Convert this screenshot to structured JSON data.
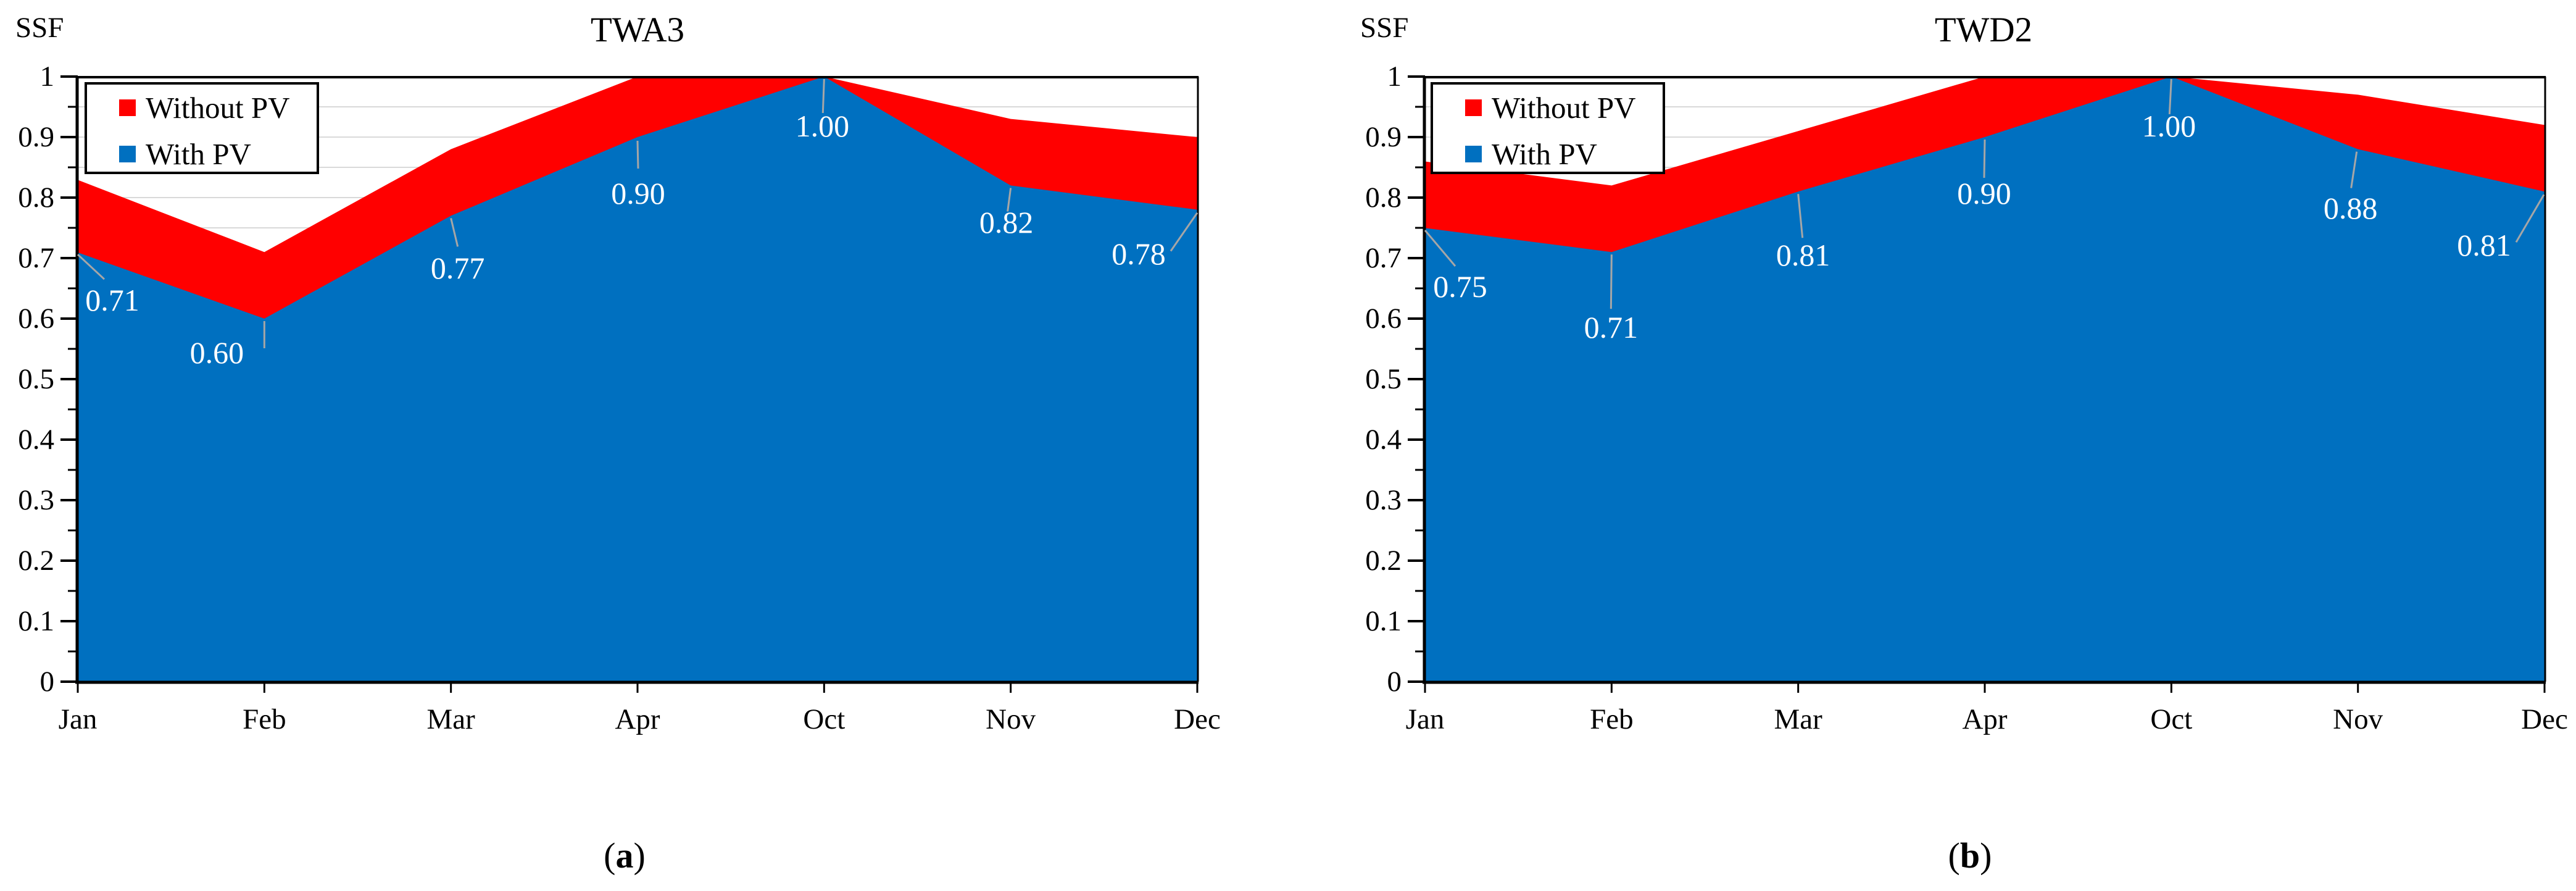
{
  "colors": {
    "without_pv": "#FF0000",
    "with_pv": "#0070C0",
    "gridline": "#D9D9D9",
    "leader_line": "#A6A6A6",
    "axis": "#000000",
    "data_label_text": "#FFFFFF",
    "background": "#FFFFFF"
  },
  "y_axis": {
    "label": "SSF",
    "tick_labels": [
      "1",
      "0.9",
      "0.8",
      "0.7",
      "0.6",
      "0.5",
      "0.4",
      "0.3",
      "0.2",
      "0.1",
      "0"
    ],
    "min": 0,
    "max": 1,
    "major_step": 0.1,
    "minor_step": 0.05
  },
  "chart_data": [
    {
      "type": "area",
      "title": "TWA3",
      "caption": {
        "prefix": "(",
        "letter": "a",
        "suffix": ")"
      },
      "ylabel": "SSF",
      "ylim": [
        0,
        1
      ],
      "grid": "horizontal every 0.05, light gray",
      "legend_position": "top-left",
      "categories": [
        "Jan",
        "Feb",
        "Mar",
        "Apr",
        "Oct",
        "Nov",
        "Dec"
      ],
      "series": [
        {
          "name": "Without PV",
          "color": "#FF0000",
          "values": [
            0.83,
            0.71,
            0.88,
            1.0,
            1.0,
            0.93,
            0.9
          ]
        },
        {
          "name": "With PV",
          "color": "#0070C0",
          "values": [
            0.71,
            0.6,
            0.77,
            0.9,
            1.0,
            0.82,
            0.78
          ]
        }
      ],
      "data_labels": {
        "series": "With PV",
        "values": [
          "0.71",
          "0.60",
          "0.77",
          "0.90",
          "1.00",
          "0.82",
          "0.78"
        ]
      }
    },
    {
      "type": "area",
      "title": "TWD2",
      "caption": {
        "prefix": "(",
        "letter": "b",
        "suffix": ")"
      },
      "ylabel": "SSF",
      "ylim": [
        0,
        1
      ],
      "grid": "horizontal every 0.05, light gray",
      "legend_position": "top-left",
      "categories": [
        "Jan",
        "Feb",
        "Mar",
        "Apr",
        "Oct",
        "Nov",
        "Dec"
      ],
      "series": [
        {
          "name": "Without PV",
          "color": "#FF0000",
          "values": [
            0.86,
            0.82,
            0.91,
            1.0,
            1.0,
            0.97,
            0.92
          ]
        },
        {
          "name": "With PV",
          "color": "#0070C0",
          "values": [
            0.75,
            0.71,
            0.81,
            0.9,
            1.0,
            0.88,
            0.81
          ]
        }
      ],
      "data_labels": {
        "series": "With PV",
        "values": [
          "0.75",
          "0.71",
          "0.81",
          "0.90",
          "1.00",
          "0.88",
          "0.81"
        ]
      }
    }
  ]
}
